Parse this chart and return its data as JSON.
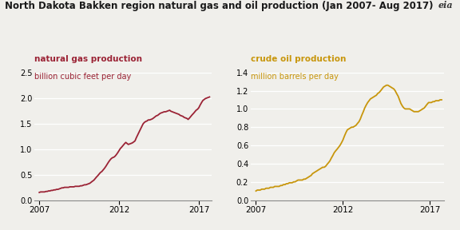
{
  "title": "North Dakota Bakken region natural gas and oil production (Jan 2007- Aug 2017)",
  "title_fontsize": 8.5,
  "gas_label": "natural gas production",
  "gas_unit": "billion cubic feet per day",
  "oil_label": "crude oil production",
  "oil_unit": "million barrels per day",
  "gas_color": "#9B2335",
  "oil_color": "#C8960C",
  "background_color": "#F0EFEB",
  "gas_ylim": [
    0.0,
    2.5
  ],
  "oil_ylim": [
    0.0,
    1.4
  ],
  "gas_yticks": [
    0.0,
    0.5,
    1.0,
    1.5,
    2.0,
    2.5
  ],
  "oil_yticks": [
    0.0,
    0.2,
    0.4,
    0.6,
    0.8,
    1.0,
    1.2,
    1.4
  ],
  "xticks": [
    2007,
    2012,
    2017
  ],
  "xlim": [
    2006.7,
    2017.8
  ],
  "gas_data_x": [
    2007.0,
    2007.08,
    2007.17,
    2007.25,
    2007.33,
    2007.42,
    2007.5,
    2007.58,
    2007.67,
    2007.75,
    2007.83,
    2007.92,
    2008.0,
    2008.08,
    2008.17,
    2008.25,
    2008.33,
    2008.42,
    2008.5,
    2008.58,
    2008.67,
    2008.75,
    2008.83,
    2008.92,
    2009.0,
    2009.08,
    2009.17,
    2009.25,
    2009.33,
    2009.42,
    2009.5,
    2009.58,
    2009.67,
    2009.75,
    2009.83,
    2009.92,
    2010.0,
    2010.08,
    2010.17,
    2010.25,
    2010.33,
    2010.42,
    2010.5,
    2010.58,
    2010.67,
    2010.75,
    2010.83,
    2010.92,
    2011.0,
    2011.08,
    2011.17,
    2011.25,
    2011.33,
    2011.42,
    2011.5,
    2011.58,
    2011.67,
    2011.75,
    2011.83,
    2011.92,
    2012.0,
    2012.08,
    2012.17,
    2012.25,
    2012.33,
    2012.42,
    2012.5,
    2012.58,
    2012.67,
    2012.75,
    2012.83,
    2012.92,
    2013.0,
    2013.08,
    2013.17,
    2013.25,
    2013.33,
    2013.42,
    2013.5,
    2013.58,
    2013.67,
    2013.75,
    2013.83,
    2013.92,
    2014.0,
    2014.08,
    2014.17,
    2014.25,
    2014.33,
    2014.42,
    2014.5,
    2014.58,
    2014.67,
    2014.75,
    2014.83,
    2014.92,
    2015.0,
    2015.08,
    2015.17,
    2015.25,
    2015.33,
    2015.42,
    2015.5,
    2015.58,
    2015.67,
    2015.75,
    2015.83,
    2015.92,
    2016.0,
    2016.08,
    2016.17,
    2016.25,
    2016.33,
    2016.42,
    2016.5,
    2016.58,
    2016.67,
    2016.75,
    2016.83,
    2016.92,
    2017.0,
    2017.08,
    2017.17,
    2017.25,
    2017.33,
    2017.42,
    2017.5,
    2017.58,
    2017.67
  ],
  "gas_data_y": [
    0.15,
    0.16,
    0.16,
    0.16,
    0.16,
    0.17,
    0.17,
    0.18,
    0.18,
    0.19,
    0.19,
    0.2,
    0.2,
    0.21,
    0.21,
    0.22,
    0.23,
    0.24,
    0.24,
    0.25,
    0.25,
    0.25,
    0.25,
    0.26,
    0.26,
    0.26,
    0.26,
    0.27,
    0.27,
    0.27,
    0.27,
    0.28,
    0.28,
    0.29,
    0.3,
    0.3,
    0.31,
    0.32,
    0.33,
    0.35,
    0.37,
    0.39,
    0.42,
    0.45,
    0.48,
    0.51,
    0.54,
    0.56,
    0.59,
    0.62,
    0.66,
    0.7,
    0.74,
    0.78,
    0.81,
    0.83,
    0.84,
    0.86,
    0.89,
    0.93,
    0.97,
    1.01,
    1.04,
    1.07,
    1.1,
    1.13,
    1.11,
    1.09,
    1.1,
    1.11,
    1.12,
    1.14,
    1.16,
    1.22,
    1.28,
    1.33,
    1.38,
    1.44,
    1.49,
    1.52,
    1.54,
    1.55,
    1.57,
    1.57,
    1.58,
    1.59,
    1.61,
    1.63,
    1.65,
    1.66,
    1.68,
    1.7,
    1.71,
    1.72,
    1.73,
    1.73,
    1.74,
    1.75,
    1.76,
    1.74,
    1.73,
    1.72,
    1.71,
    1.7,
    1.69,
    1.68,
    1.66,
    1.65,
    1.64,
    1.62,
    1.61,
    1.6,
    1.58,
    1.61,
    1.64,
    1.67,
    1.7,
    1.73,
    1.76,
    1.78,
    1.81,
    1.86,
    1.91,
    1.95,
    1.97,
    1.99,
    2.0,
    2.01,
    2.02
  ],
  "oil_data_x": [
    2007.0,
    2007.08,
    2007.17,
    2007.25,
    2007.33,
    2007.42,
    2007.5,
    2007.58,
    2007.67,
    2007.75,
    2007.83,
    2007.92,
    2008.0,
    2008.08,
    2008.17,
    2008.25,
    2008.33,
    2008.42,
    2008.5,
    2008.58,
    2008.67,
    2008.75,
    2008.83,
    2008.92,
    2009.0,
    2009.08,
    2009.17,
    2009.25,
    2009.33,
    2009.42,
    2009.5,
    2009.58,
    2009.67,
    2009.75,
    2009.83,
    2009.92,
    2010.0,
    2010.08,
    2010.17,
    2010.25,
    2010.33,
    2010.42,
    2010.5,
    2010.58,
    2010.67,
    2010.75,
    2010.83,
    2010.92,
    2011.0,
    2011.08,
    2011.17,
    2011.25,
    2011.33,
    2011.42,
    2011.5,
    2011.58,
    2011.67,
    2011.75,
    2011.83,
    2011.92,
    2012.0,
    2012.08,
    2012.17,
    2012.25,
    2012.33,
    2012.42,
    2012.5,
    2012.58,
    2012.67,
    2012.75,
    2012.83,
    2012.92,
    2013.0,
    2013.08,
    2013.17,
    2013.25,
    2013.33,
    2013.42,
    2013.5,
    2013.58,
    2013.67,
    2013.75,
    2013.83,
    2013.92,
    2014.0,
    2014.08,
    2014.17,
    2014.25,
    2014.33,
    2014.42,
    2014.5,
    2014.58,
    2014.67,
    2014.75,
    2014.83,
    2014.92,
    2015.0,
    2015.08,
    2015.17,
    2015.25,
    2015.33,
    2015.42,
    2015.5,
    2015.58,
    2015.67,
    2015.75,
    2015.83,
    2015.92,
    2016.0,
    2016.08,
    2016.17,
    2016.25,
    2016.33,
    2016.42,
    2016.5,
    2016.58,
    2016.67,
    2016.75,
    2016.83,
    2016.92,
    2017.0,
    2017.08,
    2017.17,
    2017.25,
    2017.33,
    2017.42,
    2017.5,
    2017.58,
    2017.67
  ],
  "oil_data_y": [
    0.1,
    0.11,
    0.11,
    0.11,
    0.12,
    0.12,
    0.12,
    0.13,
    0.13,
    0.13,
    0.14,
    0.14,
    0.14,
    0.15,
    0.15,
    0.15,
    0.15,
    0.16,
    0.16,
    0.17,
    0.17,
    0.18,
    0.18,
    0.19,
    0.19,
    0.19,
    0.2,
    0.2,
    0.21,
    0.22,
    0.22,
    0.22,
    0.22,
    0.23,
    0.23,
    0.24,
    0.25,
    0.26,
    0.27,
    0.29,
    0.3,
    0.31,
    0.32,
    0.33,
    0.34,
    0.35,
    0.36,
    0.36,
    0.37,
    0.39,
    0.41,
    0.43,
    0.46,
    0.49,
    0.52,
    0.54,
    0.56,
    0.58,
    0.6,
    0.63,
    0.66,
    0.7,
    0.74,
    0.77,
    0.78,
    0.79,
    0.8,
    0.8,
    0.81,
    0.82,
    0.84,
    0.86,
    0.89,
    0.93,
    0.97,
    1.01,
    1.04,
    1.07,
    1.09,
    1.11,
    1.12,
    1.13,
    1.14,
    1.15,
    1.17,
    1.18,
    1.2,
    1.22,
    1.24,
    1.25,
    1.26,
    1.26,
    1.25,
    1.24,
    1.23,
    1.22,
    1.2,
    1.17,
    1.14,
    1.1,
    1.06,
    1.03,
    1.01,
    1.0,
    1.0,
    1.0,
    1.0,
    0.99,
    0.98,
    0.97,
    0.97,
    0.97,
    0.97,
    0.98,
    0.99,
    1.0,
    1.01,
    1.03,
    1.05,
    1.07,
    1.07,
    1.07,
    1.08,
    1.08,
    1.09,
    1.09,
    1.09,
    1.1,
    1.1
  ]
}
